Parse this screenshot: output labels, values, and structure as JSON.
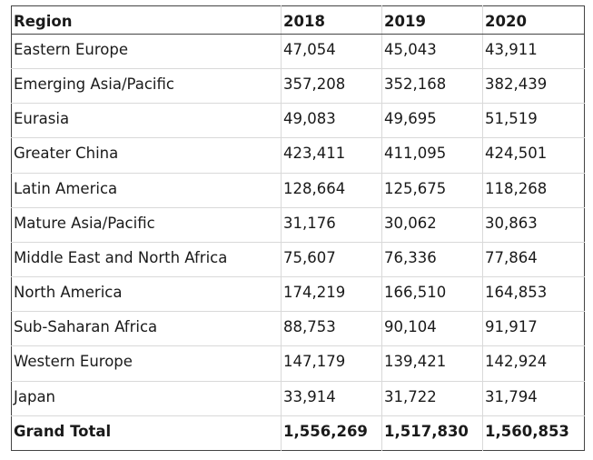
{
  "table": {
    "headers": [
      "Region",
      "2018",
      "2019",
      "2020"
    ],
    "rows": [
      [
        "Eastern Europe",
        "47,054",
        "45,043",
        "43,911"
      ],
      [
        "Emerging Asia/Pacific",
        "357,208",
        "352,168",
        "382,439"
      ],
      [
        "Eurasia",
        "49,083",
        "49,695",
        "51,519"
      ],
      [
        "Greater China",
        "423,411",
        "411,095",
        "424,501"
      ],
      [
        "Latin America",
        "128,664",
        "125,675",
        "118,268"
      ],
      [
        "Mature Asia/Pacific",
        "31,176",
        "30,062",
        "30,863"
      ],
      [
        "Middle East and North Africa",
        "75,607",
        "76,336",
        "77,864"
      ],
      [
        "North America",
        "174,219",
        "166,510",
        "164,853"
      ],
      [
        "Sub-Saharan Africa",
        "88,753",
        "90,104",
        "91,917"
      ],
      [
        "Western Europe",
        "147,179",
        "139,421",
        "142,924"
      ],
      [
        "Japan",
        "33,914",
        "31,722",
        "31,794"
      ]
    ],
    "total": [
      "Grand Total",
      "1,556,269",
      "1,517,830",
      "1,560,853"
    ]
  },
  "colors": {
    "outer_border": "#444444",
    "grid_line": "#d9d9d9",
    "text": "#1a1a1a"
  }
}
